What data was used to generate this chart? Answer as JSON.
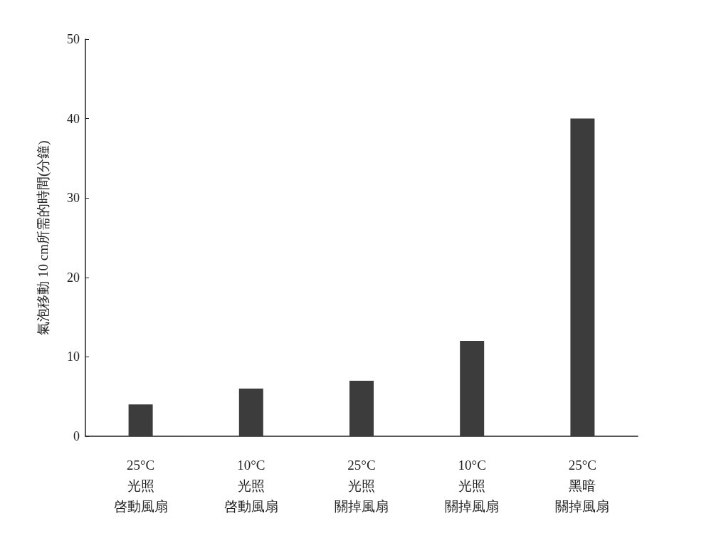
{
  "chart_data": {
    "type": "bar",
    "ylabel": "氣泡移動 10 cm所需的時間(分鐘)",
    "categories": [
      "25°C光照啓動風扇",
      "10°C光照啓動風扇",
      "25°C光照關掉風扇",
      "10°C光照關掉風扇",
      "25°C黑暗關掉風扇"
    ],
    "values": [
      4,
      6,
      7,
      12,
      40
    ],
    "color": "#3c3c3c",
    "ylim": [
      0,
      50
    ],
    "yticks": [
      0,
      10,
      20,
      30,
      40,
      50
    ],
    "grid": false
  }
}
